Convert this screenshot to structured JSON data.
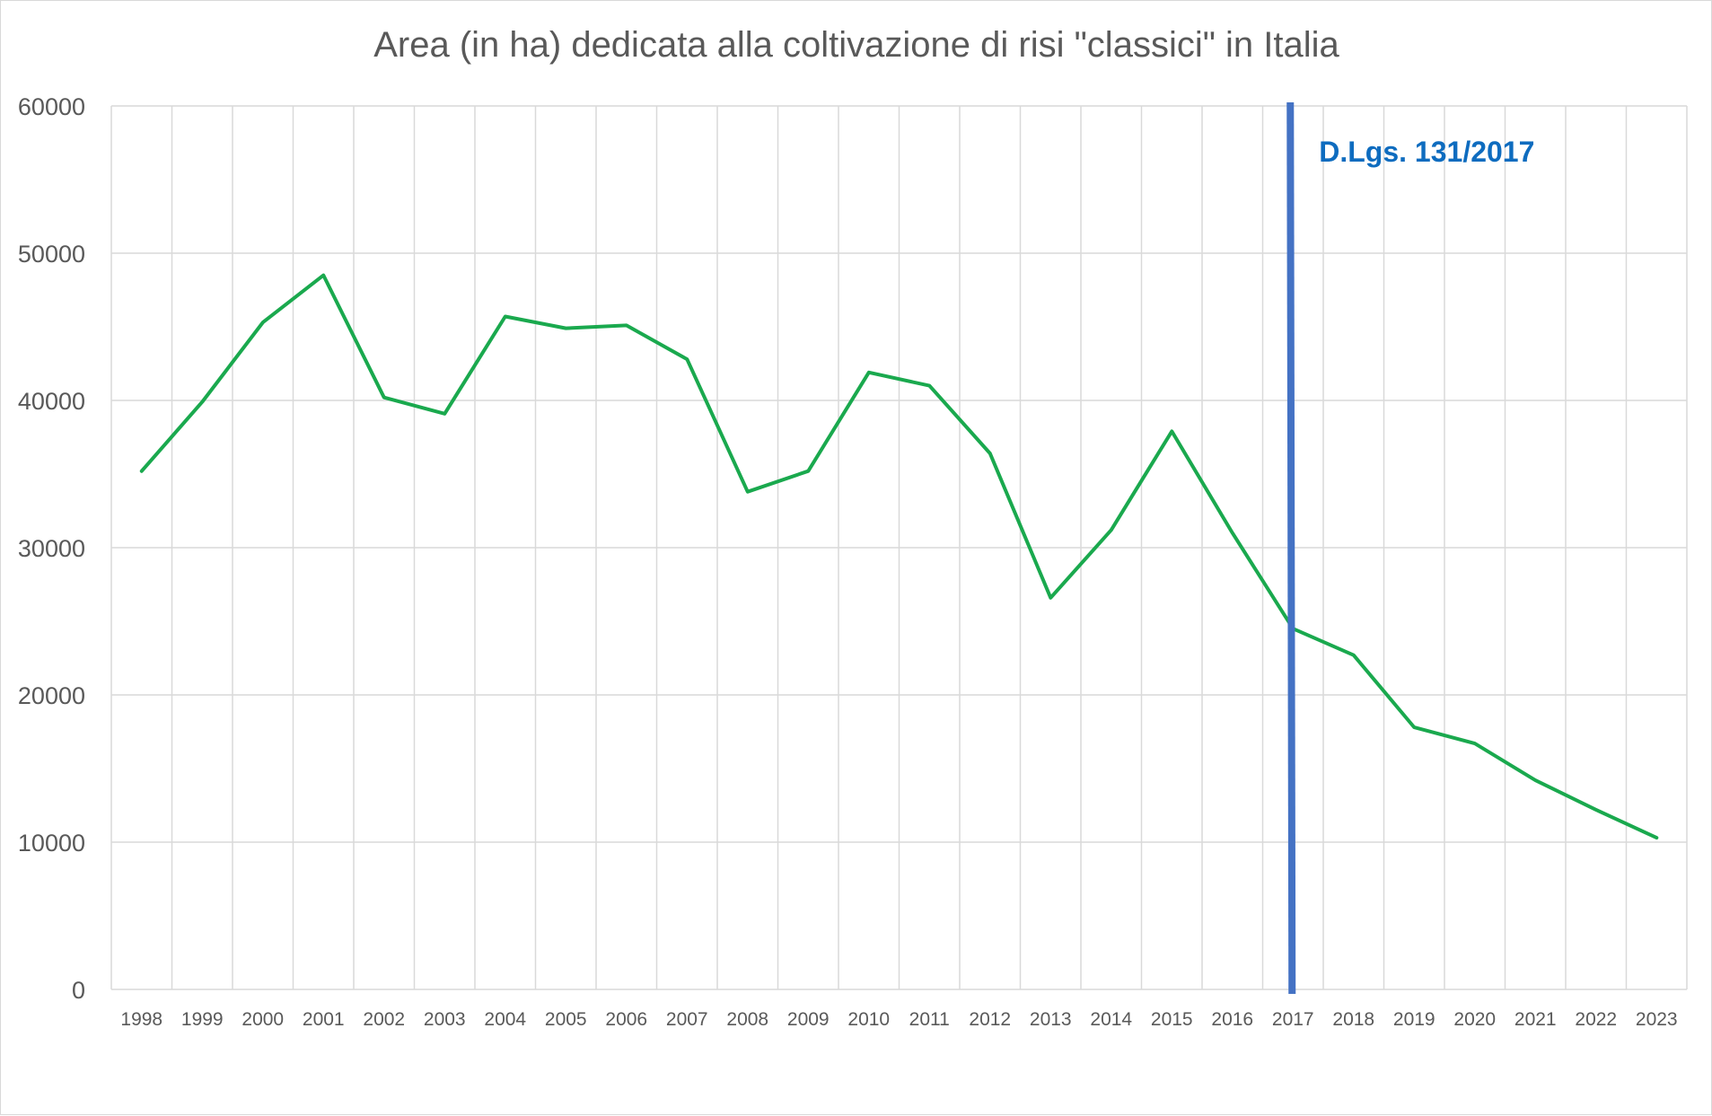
{
  "chart_data": {
    "type": "line",
    "title": "Area (in ha) dedicata alla coltivazione di risi \"classici\" in Italia",
    "xlabel": "",
    "ylabel": "",
    "ylim": [
      0,
      60000
    ],
    "y_ticks": [
      "0",
      "10000",
      "20000",
      "30000",
      "40000",
      "50000",
      "60000"
    ],
    "categories": [
      "1998",
      "1999",
      "2000",
      "2001",
      "2002",
      "2003",
      "2004",
      "2005",
      "2006",
      "2007",
      "2008",
      "2009",
      "2010",
      "2011",
      "2012",
      "2013",
      "2014",
      "2015",
      "2016",
      "2017",
      "2018",
      "2019",
      "2020",
      "2021",
      "2022",
      "2023"
    ],
    "series": [
      {
        "values": [
          35200,
          39900,
          45300,
          48500,
          40200,
          39100,
          45700,
          44900,
          45100,
          42800,
          33800,
          35200,
          41900,
          41000,
          36400,
          26600,
          31200,
          37900,
          31000,
          24500,
          22700,
          17800,
          16700,
          14200,
          12200,
          10300
        ],
        "color": "#1aa94e"
      }
    ],
    "grid": {
      "horizontal": true,
      "vertical": true,
      "color": "#d9d9d9"
    },
    "annotation": {
      "label": "D.Lgs. 131/2017",
      "at_category": "2017",
      "line_color": "#4472c4",
      "label_color": "#0e6cbf"
    }
  }
}
